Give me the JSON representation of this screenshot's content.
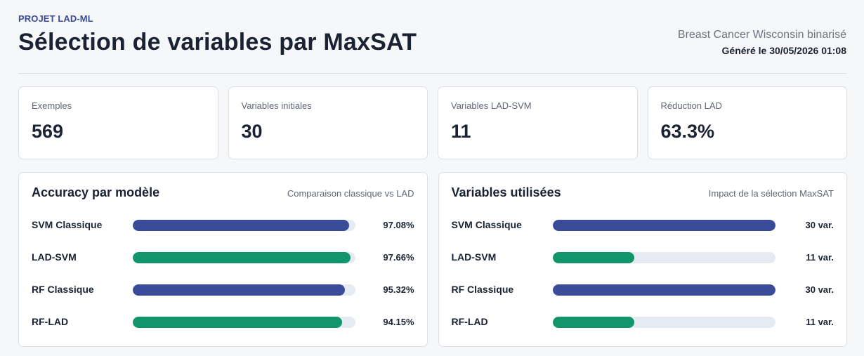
{
  "header": {
    "kicker": "PROJET LAD-ML",
    "title": "Sélection de variables par MaxSAT",
    "dataset": "Breast Cancer Wisconsin binarisé",
    "generated": "Généré le 30/05/2026 01:08"
  },
  "kpis": [
    {
      "label": "Exemples",
      "value": "569"
    },
    {
      "label": "Variables initiales",
      "value": "30"
    },
    {
      "label": "Variables LAD-SVM",
      "value": "11"
    },
    {
      "label": "Réduction LAD",
      "value": "63.3%"
    }
  ],
  "colors": {
    "classic": "#3a4b9a",
    "lad": "#12956a",
    "track": "#e6eaf2"
  },
  "chart_data": [
    {
      "type": "bar",
      "orientation": "horizontal",
      "title": "Accuracy par modèle",
      "subtitle": "Comparaison classique vs LAD",
      "categories": [
        "SVM Classique",
        "LAD-SVM",
        "RF Classique",
        "RF-LAD"
      ],
      "values": [
        97.08,
        97.66,
        95.32,
        94.15
      ],
      "value_labels": [
        "97.08%",
        "97.66%",
        "95.32%",
        "94.15%"
      ],
      "groups": [
        "classic",
        "lad",
        "classic",
        "lad"
      ],
      "xlim": [
        0,
        100
      ]
    },
    {
      "type": "bar",
      "orientation": "horizontal",
      "title": "Variables utilisées",
      "subtitle": "Impact de la sélection MaxSAT",
      "categories": [
        "SVM Classique",
        "LAD-SVM",
        "RF Classique",
        "RF-LAD"
      ],
      "values": [
        30,
        11,
        30,
        11
      ],
      "value_labels": [
        "30 var.",
        "11 var.",
        "30 var.",
        "11 var."
      ],
      "groups": [
        "classic",
        "lad",
        "classic",
        "lad"
      ],
      "xlim": [
        0,
        30
      ]
    }
  ]
}
